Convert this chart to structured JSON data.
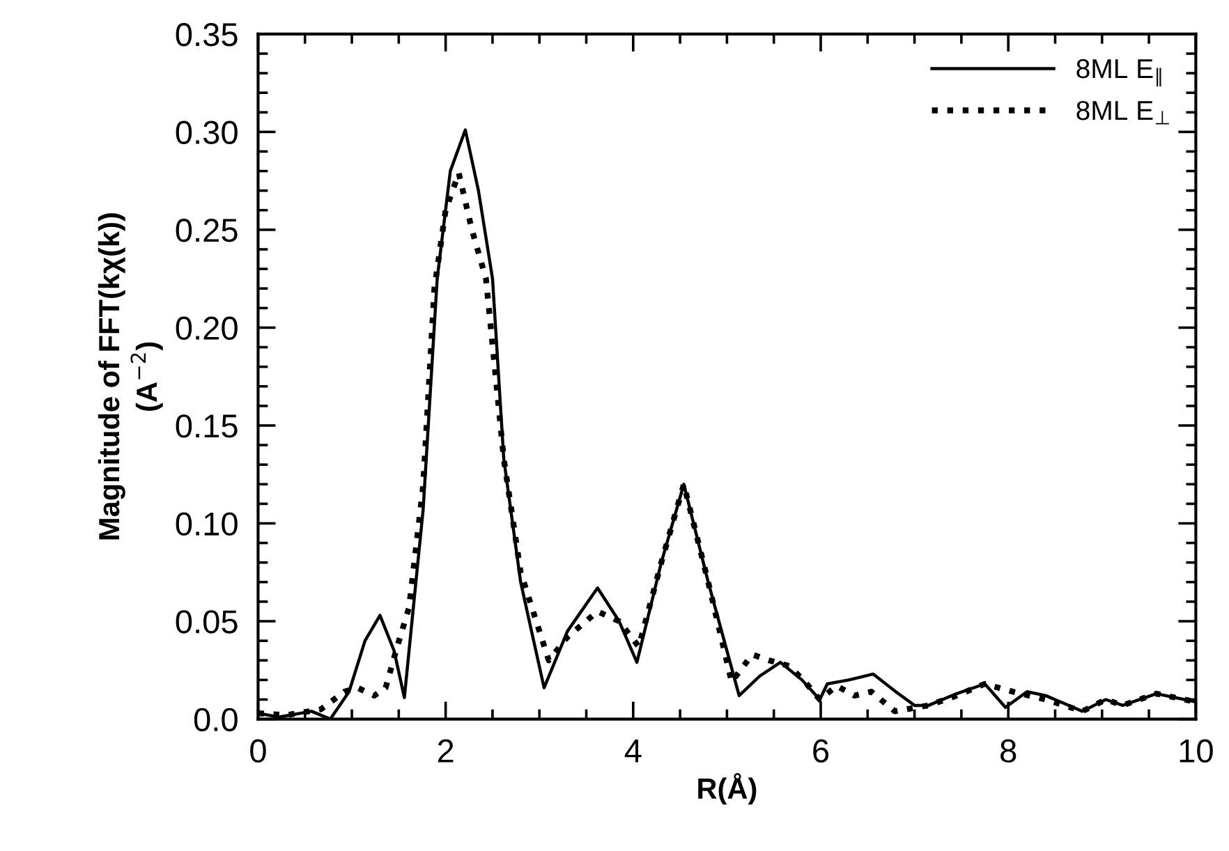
{
  "chart_data": {
    "type": "line",
    "xlabel": "R(Å)",
    "ylabel": "Magnitude of FFT(kχ(k))\n(A$^{−2}$)",
    "xlim": [
      0,
      10
    ],
    "ylim": [
      0,
      0.35
    ],
    "xticks": [
      0,
      2,
      4,
      6,
      8,
      10
    ],
    "yticks": [
      {
        "value": 0,
        "label": "0.0"
      },
      {
        "value": 0.05,
        "label": "0.05"
      },
      {
        "value": 0.1,
        "label": "0.10"
      },
      {
        "value": 0.15,
        "label": "0.15"
      },
      {
        "value": 0.2,
        "label": "0.20"
      },
      {
        "value": 0.25,
        "label": "0.25"
      },
      {
        "value": 0.3,
        "label": "0.30"
      },
      {
        "value": 0.35,
        "label": "0.35"
      }
    ],
    "legend": "top right",
    "grid": false,
    "series": [
      {
        "name": "8ML E$_{∥}$",
        "color": "#000000",
        "line_style": "solid",
        "x": [
          0,
          0.22,
          0.57,
          0.77,
          0.97,
          1.14,
          1.3,
          1.45,
          1.56,
          1.66,
          1.76,
          1.91,
          2.05,
          2.21,
          2.35,
          2.5,
          2.62,
          2.8,
          3.05,
          3.3,
          3.62,
          3.85,
          4.04,
          4.3,
          4.54,
          4.8,
          5.13,
          5.35,
          5.57,
          5.8,
          5.99,
          6.07,
          6.3,
          6.56,
          6.8,
          7.0,
          7.15,
          7.45,
          7.75,
          7.97,
          8.2,
          8.4,
          8.79,
          9.04,
          9.22,
          9.58,
          9.98
        ],
        "values": [
          0.003,
          0.001,
          0.004,
          0.0,
          0.014,
          0.04,
          0.053,
          0.035,
          0.011,
          0.059,
          0.107,
          0.225,
          0.28,
          0.301,
          0.27,
          0.225,
          0.133,
          0.07,
          0.016,
          0.045,
          0.067,
          0.05,
          0.029,
          0.08,
          0.12,
          0.07,
          0.012,
          0.022,
          0.029,
          0.02,
          0.01,
          0.018,
          0.02,
          0.023,
          0.014,
          0.007,
          0.007,
          0.013,
          0.018,
          0.006,
          0.014,
          0.012,
          0.004,
          0.01,
          0.007,
          0.013,
          0.009
        ]
      },
      {
        "name": "8ML E$_{⊥}$",
        "color": "#000000",
        "line_style": "dotted",
        "x": [
          0,
          0.3,
          0.67,
          0.92,
          1.06,
          1.24,
          1.36,
          1.49,
          1.61,
          1.76,
          1.88,
          2.0,
          2.14,
          2.28,
          2.43,
          2.62,
          2.8,
          3.1,
          3.3,
          3.62,
          3.85,
          4.06,
          4.3,
          4.54,
          4.8,
          5.05,
          5.27,
          5.45,
          5.67,
          5.85,
          5.99,
          6.17,
          6.36,
          6.54,
          6.79,
          7.15,
          7.45,
          7.75,
          8.05,
          8.4,
          8.79,
          9.04,
          9.22,
          9.58,
          9.98
        ],
        "values": [
          0.003,
          0.002,
          0.005,
          0.014,
          0.016,
          0.012,
          0.016,
          0.038,
          0.057,
          0.119,
          0.22,
          0.26,
          0.279,
          0.25,
          0.225,
          0.133,
          0.075,
          0.03,
          0.042,
          0.055,
          0.05,
          0.037,
          0.08,
          0.12,
          0.07,
          0.019,
          0.033,
          0.03,
          0.027,
          0.018,
          0.01,
          0.017,
          0.012,
          0.014,
          0.004,
          0.007,
          0.012,
          0.018,
          0.014,
          0.01,
          0.004,
          0.01,
          0.007,
          0.013,
          0.009
        ]
      }
    ]
  }
}
